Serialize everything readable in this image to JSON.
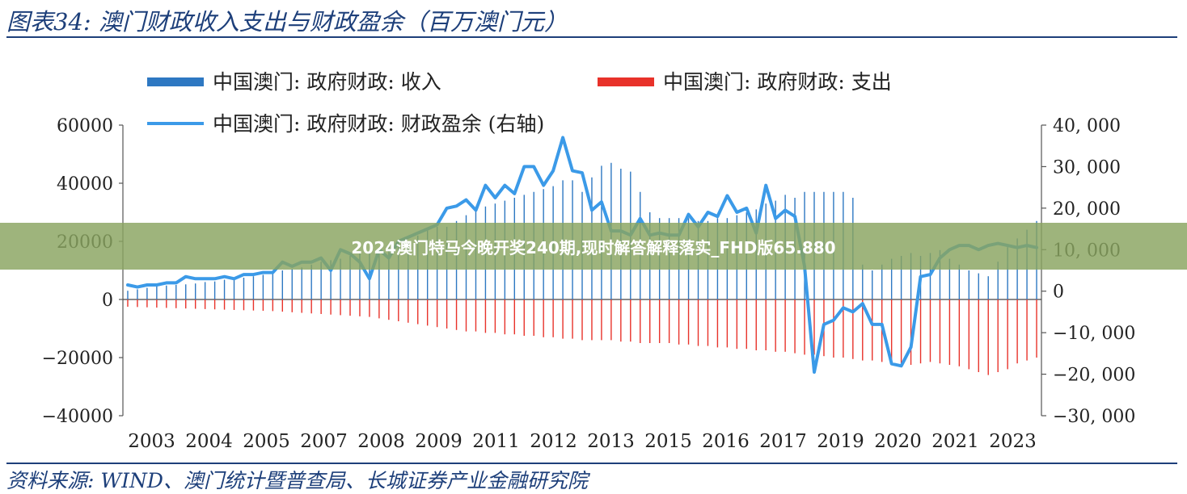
{
  "header": {
    "title": "图表34:  澳门财政收入支出与财政盈余（百万澳门元）"
  },
  "footer": {
    "source": "资料来源:  WIND、澳门统计暨普查局、长城证券产业金融研究院"
  },
  "banner": {
    "text": "2024澳门特马今晚开奖240期,现时解答解释落实_FHD版65.880"
  },
  "colors": {
    "income": "#2e78c2",
    "expense": "#e8322a",
    "surplus": "#3b9ae8",
    "text": "#1d3f7a"
  },
  "chart_data": {
    "type": "bar",
    "x_ticks": [
      "2003",
      "2004",
      "2005",
      "2007",
      "2008",
      "2009",
      "2011",
      "2012",
      "2013",
      "2015",
      "2016",
      "2017",
      "2019",
      "2020",
      "2021",
      "2023"
    ],
    "y_left": {
      "min": -40000,
      "max": 60000,
      "ticks": [
        "60000",
        "40000",
        "20000",
        "0",
        "−20000",
        "−40000"
      ]
    },
    "y_right": {
      "min": -30000,
      "max": 40000,
      "ticks": [
        "40, 000",
        "30, 000",
        "20, 000",
        "10, 000",
        "0",
        "−10, 000",
        "−20, 000",
        "−30, 000"
      ]
    },
    "legend": {
      "placement": "top",
      "entries": [
        {
          "name": "中国澳门: 政府财政: 收入"
        },
        {
          "name": "中国澳门: 政府财政: 支出"
        },
        {
          "name": "中国澳门: 政府财政: 财政盈余 (右轴)"
        }
      ]
    },
    "series": [
      {
        "name": "中国澳门: 政府财政: 收入",
        "axis": "left",
        "kind": "bar",
        "values": [
          3000,
          3500,
          4000,
          4500,
          4800,
          5000,
          5200,
          5500,
          6000,
          6200,
          6800,
          7000,
          7500,
          8000,
          8500,
          9000,
          10000,
          10500,
          11000,
          12000,
          13000,
          13500,
          14000,
          15000,
          16000,
          16000,
          17000,
          18000,
          19000,
          20000,
          22000,
          24000,
          25000,
          25000,
          27000,
          29000,
          31000,
          32000,
          33000,
          34000,
          35000,
          36000,
          37000,
          38000,
          39000,
          41000,
          41000,
          37000,
          42000,
          46000,
          47000,
          45000,
          44000,
          37000,
          30000,
          28000,
          28000,
          28000,
          28000,
          27000,
          27000,
          28000,
          28000,
          29000,
          30000,
          31000,
          33000,
          34000,
          36000,
          35000,
          37000,
          37000,
          37000,
          37000,
          37000,
          35000,
          12000,
          10000,
          12000,
          14000,
          15000,
          16000,
          15000,
          16000,
          17000,
          14000,
          12000,
          10000,
          9000,
          8000,
          13000,
          18000,
          21000,
          24000,
          27000
        ]
      },
      {
        "name": "中国澳门: 政府财政: 支出",
        "axis": "left",
        "kind": "bar",
        "values": [
          -2500,
          -2600,
          -2700,
          -2800,
          -2900,
          -3000,
          -3100,
          -3200,
          -3300,
          -3400,
          -3500,
          -3600,
          -3700,
          -3800,
          -3900,
          -4000,
          -4200,
          -4400,
          -4600,
          -4800,
          -5000,
          -5200,
          -5400,
          -5600,
          -5800,
          -6000,
          -6500,
          -7000,
          -7500,
          -8000,
          -8500,
          -9000,
          -9500,
          -10000,
          -10500,
          -11000,
          -11000,
          -11500,
          -11500,
          -12000,
          -12000,
          -12500,
          -12500,
          -13000,
          -13000,
          -13500,
          -13500,
          -14000,
          -14000,
          -14000,
          -14000,
          -14500,
          -14500,
          -15000,
          -15000,
          -15000,
          -15000,
          -15500,
          -15500,
          -16000,
          -16000,
          -16500,
          -16500,
          -17000,
          -17000,
          -17500,
          -17500,
          -18000,
          -18000,
          -18500,
          -19000,
          -19000,
          -19500,
          -20000,
          -20000,
          -20500,
          -21000,
          -21000,
          -21500,
          -22000,
          -22000,
          -22500,
          -22000,
          -21500,
          -22000,
          -22500,
          -23000,
          -24000,
          -25000,
          -26000,
          -25000,
          -24000,
          -22000,
          -21000,
          -20000
        ]
      },
      {
        "name": "中国澳门: 政府财政: 财政盈余 (右轴)",
        "axis": "right",
        "kind": "line",
        "values": [
          1500,
          1000,
          1500,
          1500,
          2000,
          2000,
          3500,
          3000,
          3000,
          3000,
          3500,
          3000,
          4000,
          4000,
          4500,
          4500,
          7000,
          6000,
          7000,
          7000,
          8000,
          5000,
          10000,
          9000,
          7000,
          3000,
          10000,
          8000,
          12000,
          13000,
          14000,
          15000,
          16000,
          20000,
          20500,
          22000,
          19500,
          25500,
          22500,
          25500,
          23500,
          30000,
          30000,
          25500,
          29000,
          37000,
          29000,
          28500,
          19500,
          21500,
          14500,
          14500,
          13500,
          17500,
          13500,
          14000,
          13500,
          13500,
          18500,
          15500,
          19000,
          18000,
          23000,
          19000,
          20000,
          14000,
          25500,
          17500,
          19500,
          18000,
          6000,
          -19500,
          -8000,
          -7000,
          -4000,
          -5000,
          -3000,
          -8000,
          -8000,
          -17500,
          -18000,
          -13500,
          3500,
          4000,
          8000,
          10000,
          11000,
          11000,
          10000,
          11000,
          11500,
          11000,
          10500,
          11000,
          10500
        ]
      }
    ]
  }
}
